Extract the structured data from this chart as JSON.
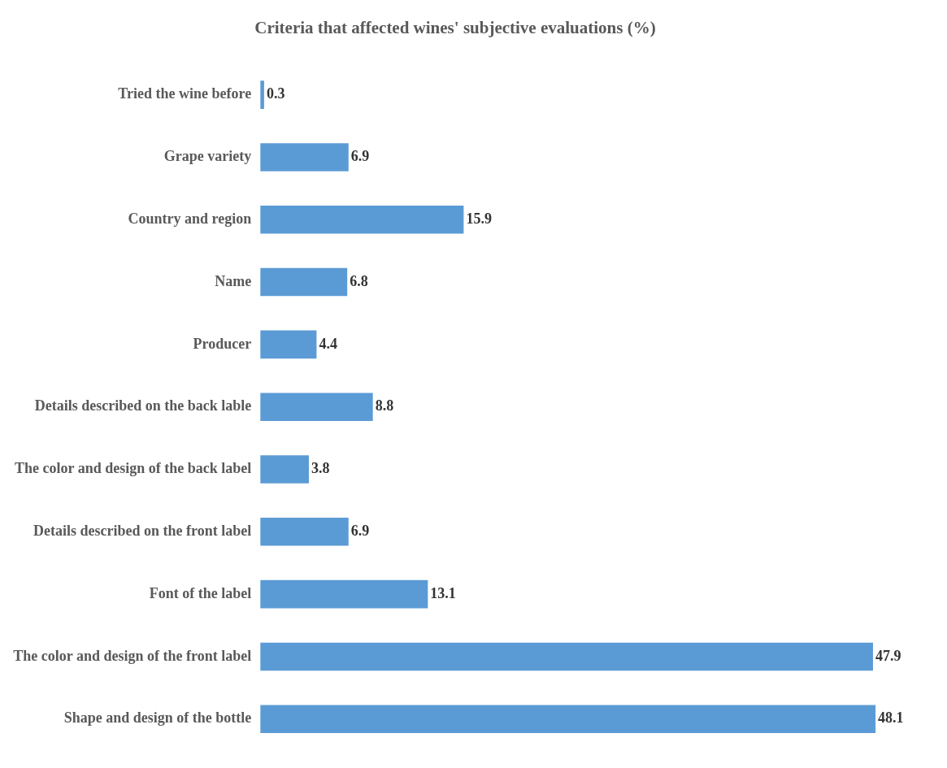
{
  "chart_data": {
    "type": "bar",
    "orientation": "horizontal",
    "title": "Criteria that affected wines' subjective evaluations (%)",
    "categories": [
      "Tried the wine before",
      "Grape variety",
      "Country and region",
      "Name",
      "Producer",
      "Details described on the back lable",
      "The color and design of the back label",
      "Details described on the front label",
      "Font of the label",
      "The color and design of the front label",
      "Shape and design of the bottle"
    ],
    "values": [
      0.3,
      6.9,
      15.9,
      6.8,
      4.4,
      8.8,
      3.8,
      6.9,
      13.1,
      47.9,
      48.1
    ],
    "color": "#5b9bd5",
    "data_labels": true,
    "legend": false
  }
}
